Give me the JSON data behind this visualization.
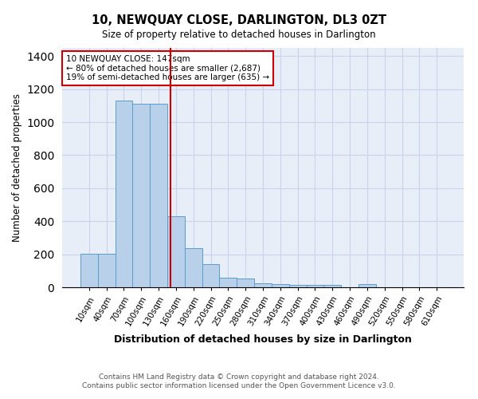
{
  "title": "10, NEWQUAY CLOSE, DARLINGTON, DL3 0ZT",
  "subtitle": "Size of property relative to detached houses in Darlington",
  "xlabel": "Distribution of detached houses by size in Darlington",
  "ylabel": "Number of detached properties",
  "footer_line1": "Contains HM Land Registry data © Crown copyright and database right 2024.",
  "footer_line2": "Contains public sector information licensed under the Open Government Licence v3.0.",
  "bar_labels": [
    "10sqm",
    "40sqm",
    "70sqm",
    "100sqm",
    "130sqm",
    "160sqm",
    "190sqm",
    "220sqm",
    "250sqm",
    "280sqm",
    "310sqm",
    "340sqm",
    "370sqm",
    "400sqm",
    "430sqm",
    "460sqm",
    "490sqm",
    "520sqm",
    "550sqm",
    "580sqm",
    "610sqm"
  ],
  "bar_values": [
    205,
    205,
    1130,
    1110,
    1110,
    430,
    235,
    140,
    60,
    55,
    25,
    18,
    15,
    15,
    15,
    0,
    17,
    0,
    0,
    0,
    0
  ],
  "bar_color": "#b8d0ea",
  "bar_edge_color": "#5a9ec9",
  "grid_color": "#c8d4e8",
  "background_color": "#e8eef8",
  "vline_x": 4.67,
  "vline_color": "#cc0000",
  "annotation_title": "10 NEWQUAY CLOSE: 147sqm",
  "annotation_line1": "← 80% of detached houses are smaller (2,687)",
  "annotation_line2": "19% of semi-detached houses are larger (635) →",
  "annotation_box_color": "#ffffff",
  "annotation_box_edge": "#cc0000",
  "ylim": [
    0,
    1450
  ],
  "yticks": [
    0,
    200,
    400,
    600,
    800,
    1000,
    1200,
    1400
  ]
}
